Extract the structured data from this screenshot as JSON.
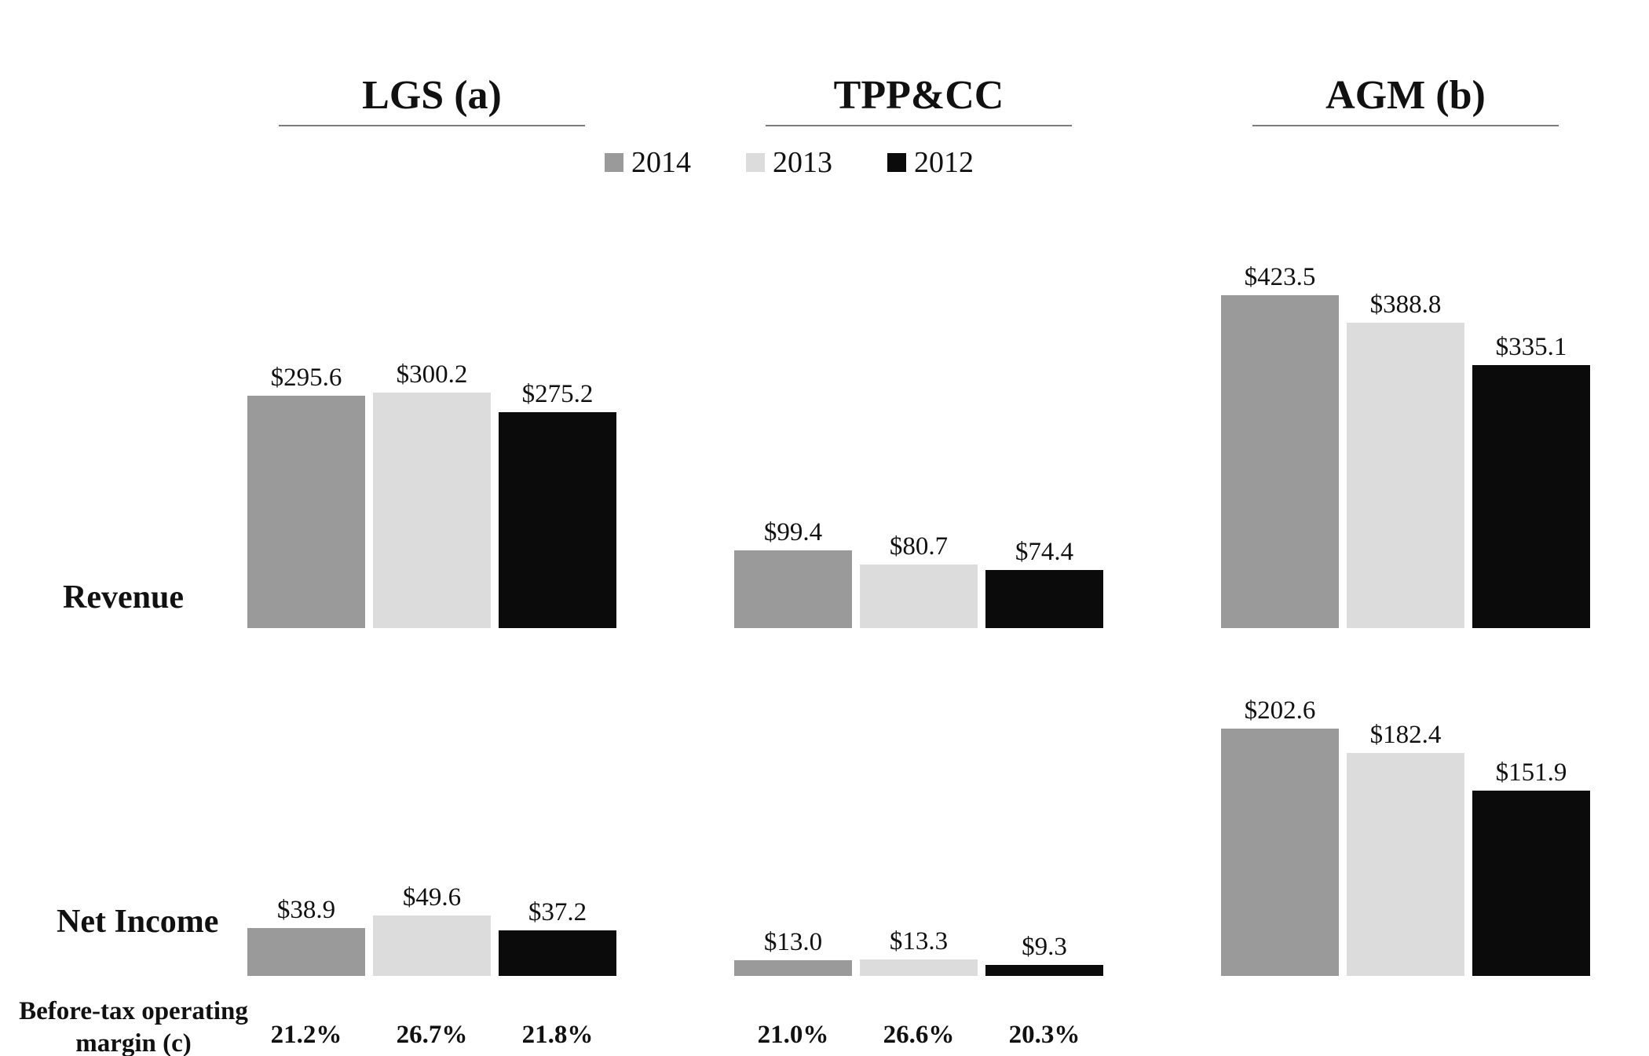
{
  "chart_data": {
    "type": "bar",
    "title": "",
    "legend_position": "top",
    "grid": false,
    "series": [
      {
        "year": "2014",
        "color": "#9a9a9a"
      },
      {
        "year": "2013",
        "color": "#dcdcdc"
      },
      {
        "year": "2012",
        "color": "#0b0b0b"
      }
    ],
    "rows": [
      {
        "key": "revenue",
        "label": "Revenue"
      },
      {
        "key": "net_income",
        "label": "Net Income"
      }
    ],
    "margin_label_lines": [
      "Before-tax operating",
      "margin (c)"
    ],
    "groups": [
      {
        "name": "LGS (a)",
        "revenue": {
          "values": [
            295.6,
            300.2,
            275.2
          ],
          "labels": [
            "$295.6",
            "$300.2",
            "$275.2"
          ]
        },
        "net_income": {
          "values": [
            38.9,
            49.6,
            37.2
          ],
          "labels": [
            "$38.9",
            "$49.6",
            "$37.2"
          ]
        },
        "margins": [
          "21.2%",
          "26.7%",
          "21.8%"
        ]
      },
      {
        "name": "TPP&CC",
        "revenue": {
          "values": [
            99.4,
            80.7,
            74.4
          ],
          "labels": [
            "$99.4",
            "$80.7",
            "$74.4"
          ]
        },
        "net_income": {
          "values": [
            13.0,
            13.3,
            9.3
          ],
          "labels": [
            "$13.0",
            "$13.3",
            "$9.3"
          ]
        },
        "margins": [
          "21.0%",
          "26.6%",
          "20.3%"
        ]
      },
      {
        "name": "AGM (b)",
        "revenue": {
          "values": [
            423.5,
            388.8,
            335.1
          ],
          "labels": [
            "$423.5",
            "$388.8",
            "$335.1"
          ]
        },
        "net_income": {
          "values": [
            202.6,
            182.4,
            151.9
          ],
          "labels": [
            "$202.6",
            "$182.4",
            "$151.9"
          ]
        },
        "margins": [
          "",
          "",
          ""
        ]
      }
    ]
  }
}
